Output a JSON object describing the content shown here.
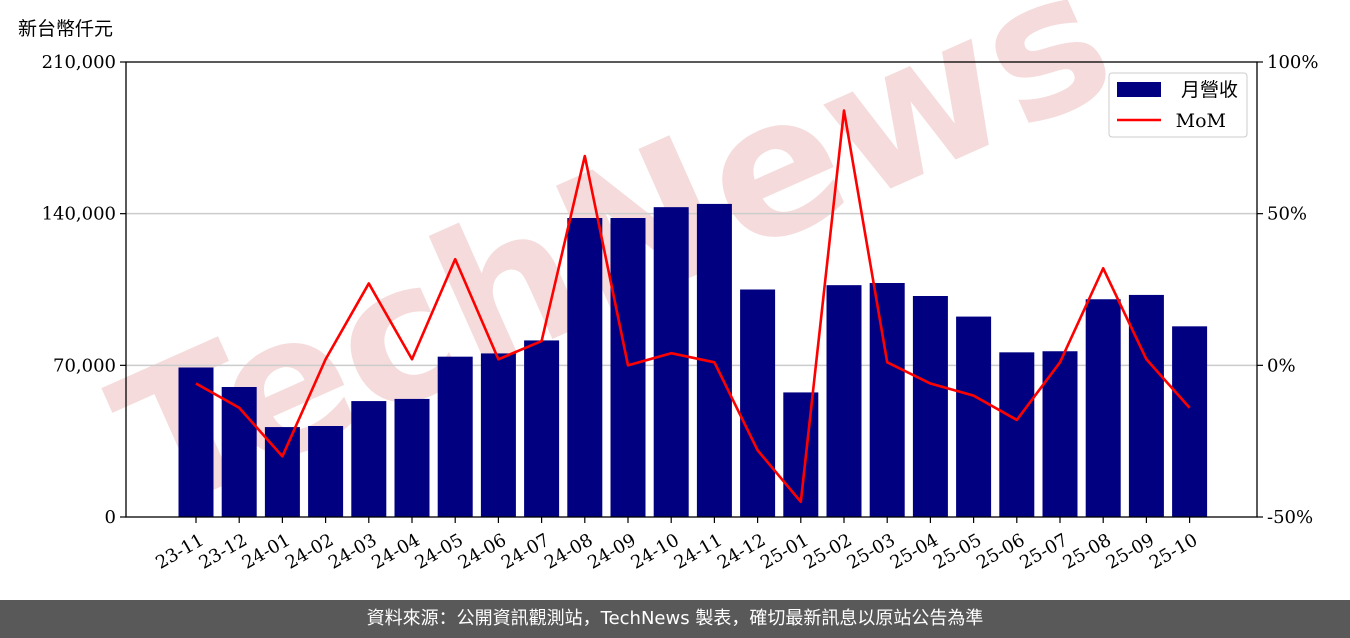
{
  "unit_label": "新台幣仟元",
  "footer_text": "資料來源：公開資訊觀測站，TechNews 製表，確切最新訊息以原站公告為準",
  "watermark_text": "TechNews",
  "colors": {
    "bar": "#000080",
    "line": "#ff0000",
    "grid": "#cccccc",
    "footer_bg": "#595959",
    "watermark": "#e8b0b0"
  },
  "chart_data": {
    "type": "bar",
    "categories": [
      "23-11",
      "23-12",
      "24-01",
      "24-02",
      "24-03",
      "24-04",
      "24-05",
      "24-06",
      "24-07",
      "24-08",
      "24-09",
      "24-10",
      "24-11",
      "24-12",
      "25-01",
      "25-02",
      "25-03",
      "25-04",
      "25-05",
      "25-06",
      "25-07",
      "25-08",
      "25-09",
      "25-10"
    ],
    "series": [
      {
        "name": "月營收",
        "type": "bar",
        "axis": "left",
        "values": [
          69000,
          60000,
          41500,
          42000,
          53500,
          54500,
          74000,
          75500,
          81500,
          138000,
          138000,
          143000,
          144500,
          105000,
          57500,
          107000,
          108000,
          102000,
          92500,
          76000,
          76500,
          100500,
          102500,
          88000
        ]
      },
      {
        "name": "MoM",
        "type": "line",
        "axis": "right",
        "values": [
          -6,
          -14,
          -30,
          2,
          27,
          2,
          35,
          2,
          8,
          69,
          0,
          4,
          1,
          -28,
          -45,
          84,
          1,
          -6,
          -10,
          -18,
          1,
          32,
          2,
          -14
        ]
      }
    ],
    "y_left": {
      "ylim": [
        0,
        210000
      ],
      "ticks": [
        "0",
        "70,000",
        "140,000",
        "210,000"
      ],
      "tick_values": [
        0,
        70000,
        140000,
        210000
      ]
    },
    "y_right": {
      "ylim": [
        -50,
        100
      ],
      "ticks": [
        "-50%",
        "0%",
        "50%",
        "100%"
      ],
      "tick_values": [
        -50,
        0,
        50,
        100
      ]
    },
    "grid": "horizontal",
    "legend": "top-right"
  }
}
